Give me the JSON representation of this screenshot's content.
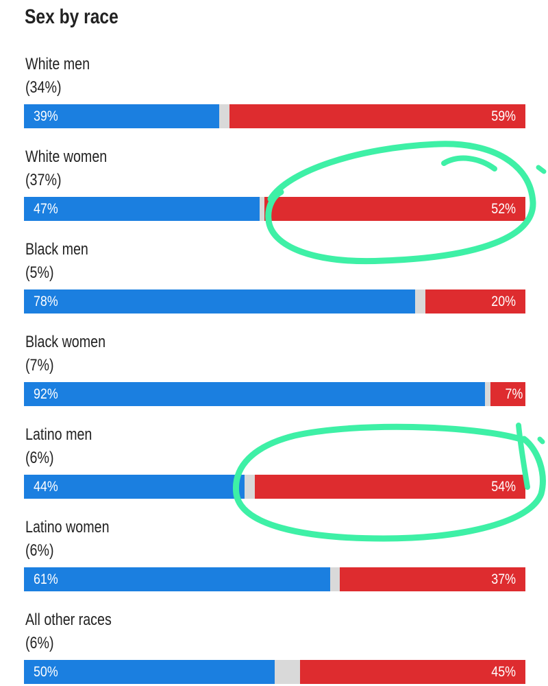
{
  "chart_data": {
    "type": "bar",
    "stacked": true,
    "orientation": "horizontal",
    "title": "Sex by race",
    "categories": [
      "White men",
      "White women",
      "Black men",
      "Black women",
      "Latino men",
      "Latino women",
      "All other races"
    ],
    "category_shares": [
      "(34%)",
      "(37%)",
      "(5%)",
      "(7%)",
      "(6%)",
      "(6%)",
      "(6%)"
    ],
    "xlim": [
      0,
      100
    ],
    "series": [
      {
        "values": [
          39,
          47,
          78,
          92,
          44,
          61,
          50
        ],
        "labels": [
          "39%",
          "47%",
          "78%",
          "92%",
          "44%",
          "61%",
          "50%"
        ]
      },
      {
        "values": [
          59,
          52,
          20,
          7,
          54,
          37,
          45
        ],
        "labels": [
          "59%",
          "52%",
          "20%",
          "7%",
          "54%",
          "37%",
          "45%"
        ]
      }
    ],
    "grid": false,
    "legend": "none"
  },
  "colors": {
    "left_series": "#1b7fe0",
    "right_series": "#de2c2f",
    "remainder": "#d9d9d9",
    "annotation": "#3ef0a6"
  }
}
